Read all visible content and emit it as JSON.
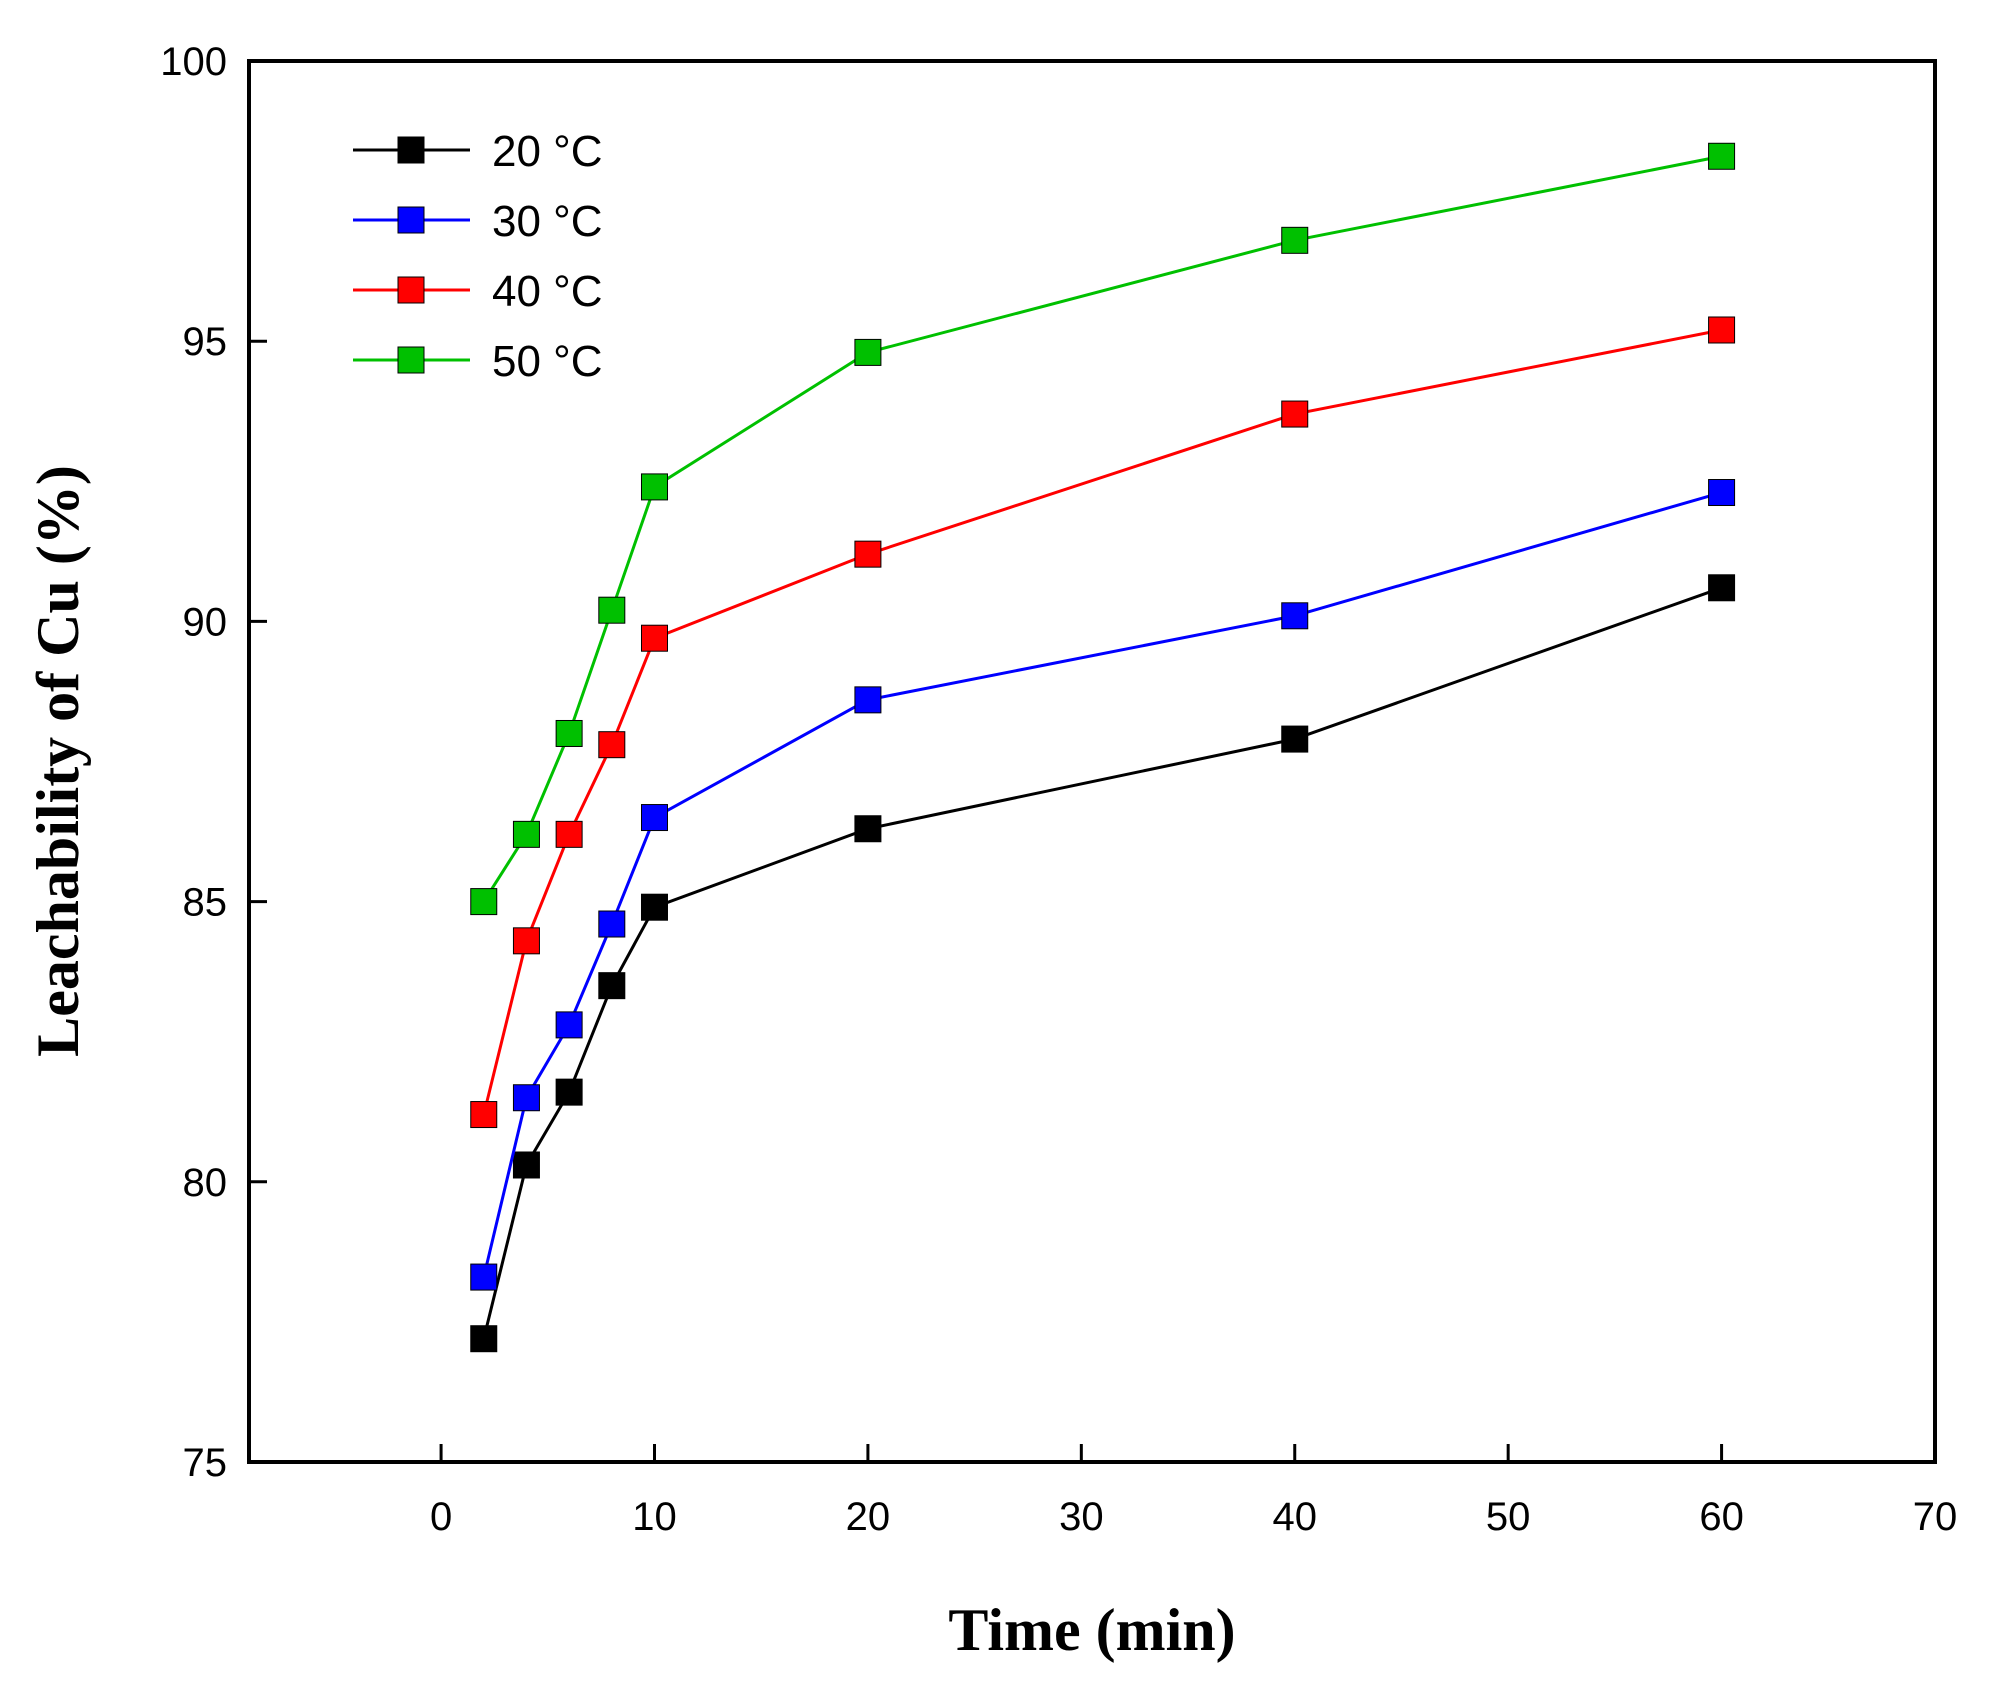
{
  "chart_data": {
    "type": "line",
    "title": "",
    "xlabel": "Time (min)",
    "ylabel": "Leachability of Cu (%)",
    "xlim": [
      -9,
      70
    ],
    "ylim": [
      75,
      100
    ],
    "xticks": [
      0,
      10,
      20,
      30,
      40,
      50,
      60,
      70
    ],
    "yticks": [
      75,
      80,
      85,
      90,
      95,
      100
    ],
    "grid": false,
    "legend_position": "top-left",
    "x": [
      2,
      4,
      6,
      8,
      10,
      20,
      40,
      60
    ],
    "series": [
      {
        "name": "20 °C",
        "label_value": "20",
        "unit": "°C",
        "color": "#000000",
        "values": [
          77.2,
          80.3,
          81.6,
          83.5,
          84.9,
          86.3,
          87.9,
          90.6
        ]
      },
      {
        "name": "30 °C",
        "label_value": "30",
        "unit": "°C",
        "color": "#0000ff",
        "values": [
          78.3,
          81.5,
          82.8,
          84.6,
          86.5,
          88.6,
          90.1,
          92.3
        ]
      },
      {
        "name": "40 °C",
        "label_value": "40",
        "unit": "°C",
        "color": "#ff0000",
        "values": [
          81.2,
          84.3,
          86.2,
          87.8,
          89.7,
          91.2,
          93.7,
          95.2
        ]
      },
      {
        "name": "50 °C",
        "label_value": "50",
        "unit": "°C",
        "color": "#00c000",
        "values": [
          85.0,
          86.2,
          88.0,
          90.2,
          92.4,
          94.8,
          96.8,
          98.3
        ]
      }
    ]
  }
}
